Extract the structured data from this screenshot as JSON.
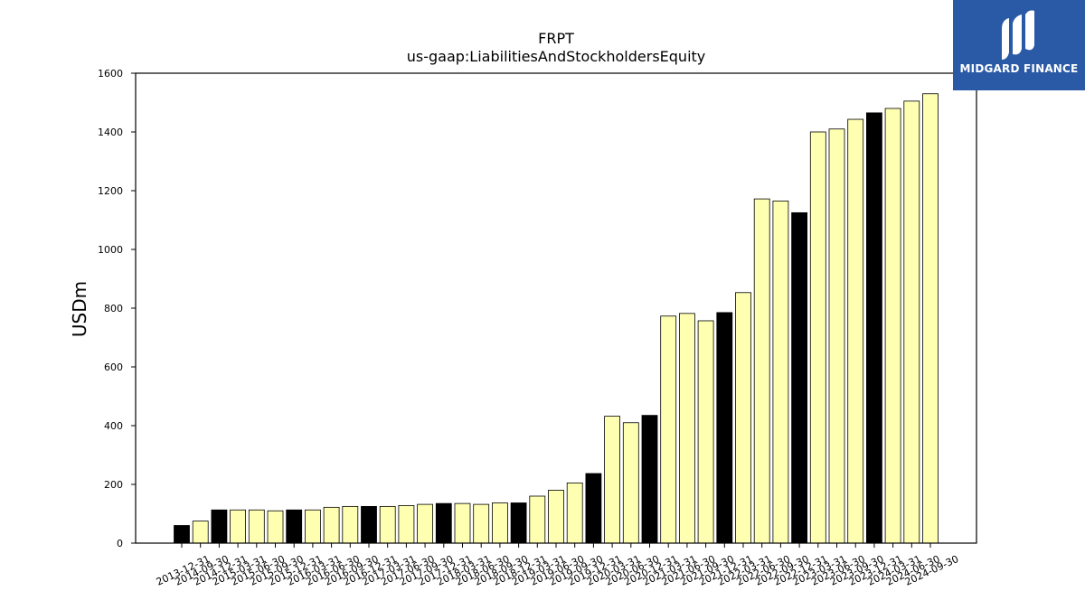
{
  "logo": {
    "text": "MIDGARD FINANCE"
  },
  "chart_data": {
    "type": "bar",
    "title": "FRPT",
    "subtitle": "us-gaap:LiabilitiesAndStockholdersEquity",
    "xlabel": "",
    "ylabel": "USDm",
    "ylim": [
      0,
      1600
    ],
    "yticks": [
      0,
      200,
      400,
      600,
      800,
      1000,
      1200,
      1400,
      1600
    ],
    "grid": false,
    "colors": {
      "annual": "#000000",
      "quarterly": "#ffffb2",
      "edge": "#000000"
    },
    "categories": [
      "2013-12-31",
      "2014-09-30",
      "2014-12-31",
      "2015-03-31",
      "2015-06-30",
      "2015-09-30",
      "2015-12-31",
      "2016-03-31",
      "2016-06-30",
      "2016-09-30",
      "2016-12-31",
      "2017-03-31",
      "2017-06-30",
      "2017-09-30",
      "2017-12-31",
      "2018-03-31",
      "2018-06-30",
      "2018-09-30",
      "2018-12-31",
      "2019-03-31",
      "2019-06-30",
      "2019-09-30",
      "2019-12-31",
      "2020-03-31",
      "2020-06-30",
      "2020-12-31",
      "2021-03-31",
      "2021-06-30",
      "2021-09-30",
      "2021-12-31",
      "2022-03-31",
      "2022-06-30",
      "2022-09-30",
      "2022-12-31",
      "2023-03-31",
      "2023-06-30",
      "2023-09-30",
      "2023-12-31",
      "2024-03-31",
      "2024-06-30",
      "2024-09-30"
    ],
    "values": [
      60,
      75,
      113,
      113,
      113,
      110,
      113,
      113,
      122,
      125,
      125,
      125,
      128,
      132,
      135,
      135,
      132,
      137,
      137,
      160,
      180,
      205,
      237,
      432,
      410,
      435,
      773,
      782,
      757,
      785,
      853,
      1172,
      1165,
      1125,
      1400,
      1410,
      1443,
      1465,
      1480,
      1505,
      1530
    ],
    "annual": [
      true,
      false,
      true,
      false,
      false,
      false,
      true,
      false,
      false,
      false,
      true,
      false,
      false,
      false,
      true,
      false,
      false,
      false,
      true,
      false,
      false,
      false,
      true,
      false,
      false,
      true,
      false,
      false,
      false,
      true,
      false,
      false,
      false,
      true,
      false,
      false,
      false,
      true,
      false,
      false,
      false
    ]
  }
}
